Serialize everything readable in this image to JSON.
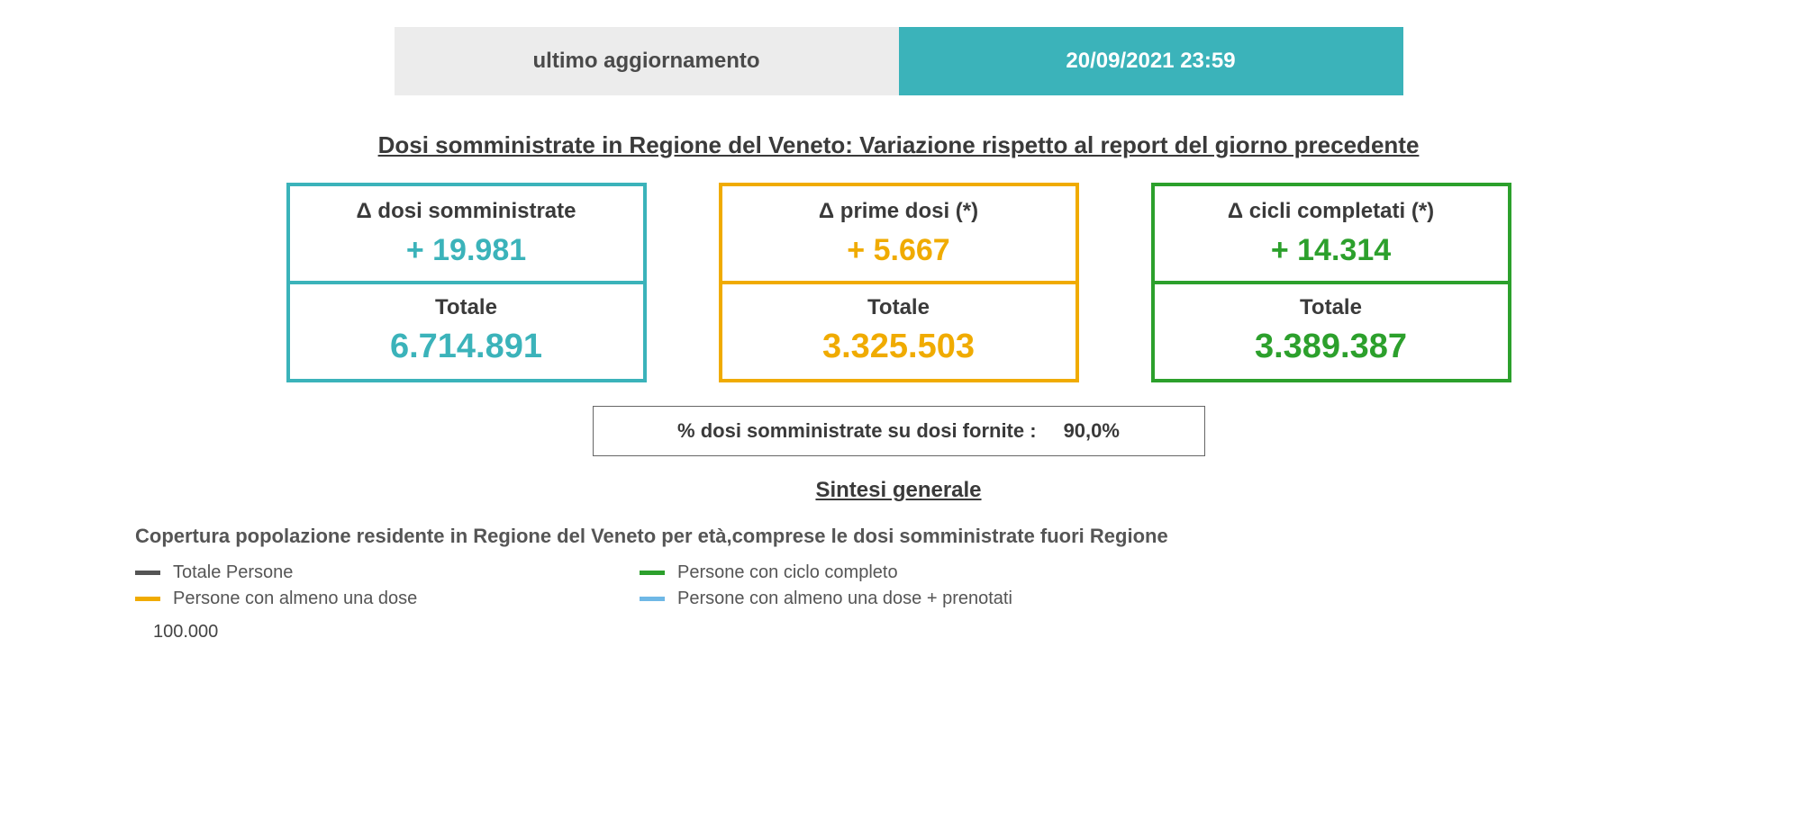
{
  "colors": {
    "teal": "#3bb3ba",
    "orange": "#f0ab00",
    "green": "#2ca02c",
    "gray_dark": "#555555",
    "blue_light": "#6fb8e6",
    "header_label_bg": "#ececec",
    "header_label_text": "#4a4a4a"
  },
  "header": {
    "label": "ultimo aggiornamento",
    "value": "20/09/2021 23:59"
  },
  "variation": {
    "title": "Dosi somministrate in Regione del Veneto: Variazione rispetto al report del giorno precedente",
    "cards": [
      {
        "delta_label": "Δ dosi somministrate",
        "delta_value": "+ 19.981",
        "total_label": "Totale",
        "total_value": "6.714.891",
        "color_key": "teal"
      },
      {
        "delta_label": "Δ prime dosi (*)",
        "delta_value": "+ 5.667",
        "total_label": "Totale",
        "total_value": "3.325.503",
        "color_key": "orange"
      },
      {
        "delta_label": "Δ cicli completati (*)",
        "delta_value": "+ 14.314",
        "total_label": "Totale",
        "total_value": "3.389.387",
        "color_key": "green"
      }
    ],
    "pct_label": "% dosi somministrate su dosi fornite :",
    "pct_value": "90,0%"
  },
  "synthesis": {
    "title": "Sintesi generale",
    "coverage_description": "Copertura popolazione residente in Regione del Veneto per età,comprese le dosi somministrate fuori Regione",
    "legend": [
      {
        "label": "Totale Persone",
        "color_key": "gray_dark"
      },
      {
        "label": "Persone con ciclo completo",
        "color_key": "green"
      },
      {
        "label": "Persone con almeno una dose",
        "color_key": "orange"
      },
      {
        "label": "Persone con almeno una dose + prenotati",
        "color_key": "blue_light"
      }
    ],
    "y_axis_top_tick": "100.000"
  }
}
